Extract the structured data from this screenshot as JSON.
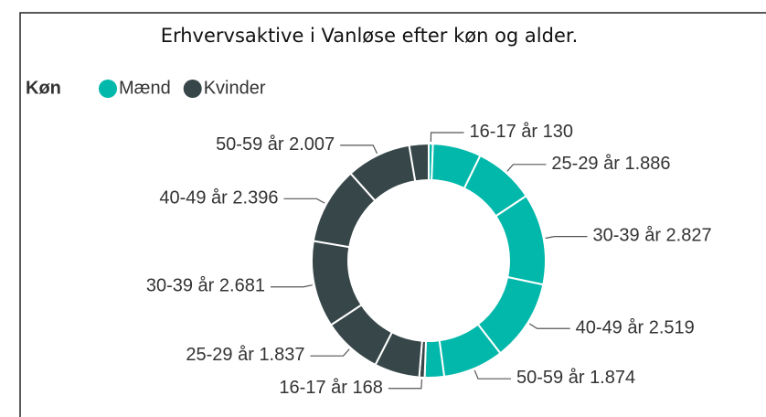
{
  "chart_data": {
    "type": "donut",
    "title": "Erhvervsaktive i Vanløse efter køn og alder.",
    "legend_title": "Køn",
    "legend": "top-left",
    "categories": [
      "16-17 år",
      null,
      "25-29 år",
      "30-39 år",
      "40-49 år",
      "50-59 år",
      null
    ],
    "series": [
      {
        "name": "Mænd",
        "color": "#01b8aa",
        "values": [
          130,
          1500,
          1886,
          2827,
          2519,
          1874,
          600
        ],
        "value_labels": [
          "130",
          null,
          "1.886",
          "2.827",
          "2.519",
          "1.874",
          null
        ]
      },
      {
        "name": "Kvinder",
        "color": "#374649",
        "values": [
          168,
          1400,
          1837,
          2681,
          2396,
          2007,
          600
        ],
        "value_labels": [
          "168",
          null,
          "1.837",
          "2.681",
          "2.396",
          "2.007",
          null
        ]
      }
    ]
  }
}
